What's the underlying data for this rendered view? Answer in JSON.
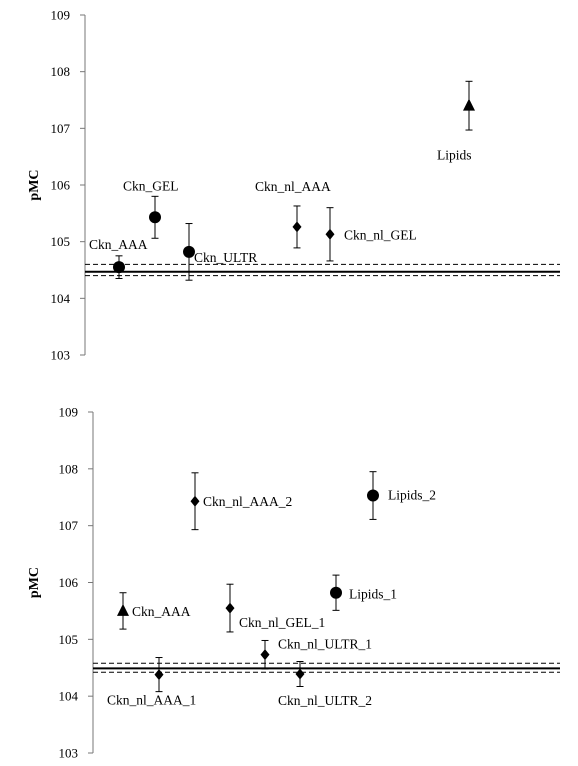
{
  "chart_data": [
    {
      "type": "scatter",
      "title": "",
      "xlabel": "",
      "ylabel": "pMC",
      "ylim": [
        103,
        109
      ],
      "yticks": [
        "103",
        "104",
        "105",
        "106",
        "107",
        "108",
        "109"
      ],
      "grid": false,
      "reference_lines": [
        {
          "style": "solid",
          "y": 104.47
        },
        {
          "style": "dashed",
          "y": 104.6
        },
        {
          "style": "dashed",
          "y": 104.4
        }
      ],
      "points": [
        {
          "label": "Ckn_AAA",
          "marker": "circle",
          "x": 1,
          "y": 104.55,
          "err": 0.2
        },
        {
          "label": "Ckn_GEL",
          "marker": "circle",
          "x": 2,
          "y": 105.43,
          "err": 0.37
        },
        {
          "label": "Ckn_ULTR",
          "marker": "circle",
          "x": 3,
          "y": 104.82,
          "err": 0.5
        },
        {
          "label": "Ckn_nl_AAA",
          "marker": "diamond",
          "x": 4,
          "y": 105.26,
          "err": 0.37
        },
        {
          "label": "Ckn_nl_GEL",
          "marker": "diamond",
          "x": 5,
          "y": 105.13,
          "err": 0.47
        },
        {
          "label": "Lipids",
          "marker": "triangle",
          "x": 6,
          "y": 107.4,
          "err": 0.43
        }
      ]
    },
    {
      "type": "scatter",
      "title": "",
      "xlabel": "",
      "ylabel": "pMC",
      "ylim": [
        103,
        109
      ],
      "yticks": [
        "103",
        "104",
        "105",
        "106",
        "107",
        "108",
        "109"
      ],
      "grid": false,
      "reference_lines": [
        {
          "style": "solid",
          "y": 104.49
        },
        {
          "style": "dashed",
          "y": 104.58
        },
        {
          "style": "dashed",
          "y": 104.42
        }
      ],
      "points": [
        {
          "label": "Ckn_AAA",
          "marker": "triangle",
          "x": 1,
          "y": 105.5,
          "err": 0.32
        },
        {
          "label": "Ckn_nl_AAA_1",
          "marker": "diamond",
          "x": 2,
          "y": 104.38,
          "err": 0.3
        },
        {
          "label": "Ckn_nl_AAA_2",
          "marker": "diamond",
          "x": 3,
          "y": 107.43,
          "err": 0.5
        },
        {
          "label": "Ckn_nl_GEL_1",
          "marker": "diamond",
          "x": 4,
          "y": 105.55,
          "err": 0.42
        },
        {
          "label": "Ckn_nl_ULTR_1",
          "marker": "diamond",
          "x": 5,
          "y": 104.73,
          "err": 0.25
        },
        {
          "label": "Ckn_nl_ULTR_2",
          "marker": "diamond",
          "x": 6,
          "y": 104.39,
          "err": 0.22
        },
        {
          "label": "Lipids_1",
          "marker": "circle",
          "x": 7,
          "y": 105.82,
          "err": 0.31
        },
        {
          "label": "Lipids_2",
          "marker": "circle",
          "x": 8,
          "y": 107.53,
          "err": 0.42
        }
      ]
    }
  ]
}
